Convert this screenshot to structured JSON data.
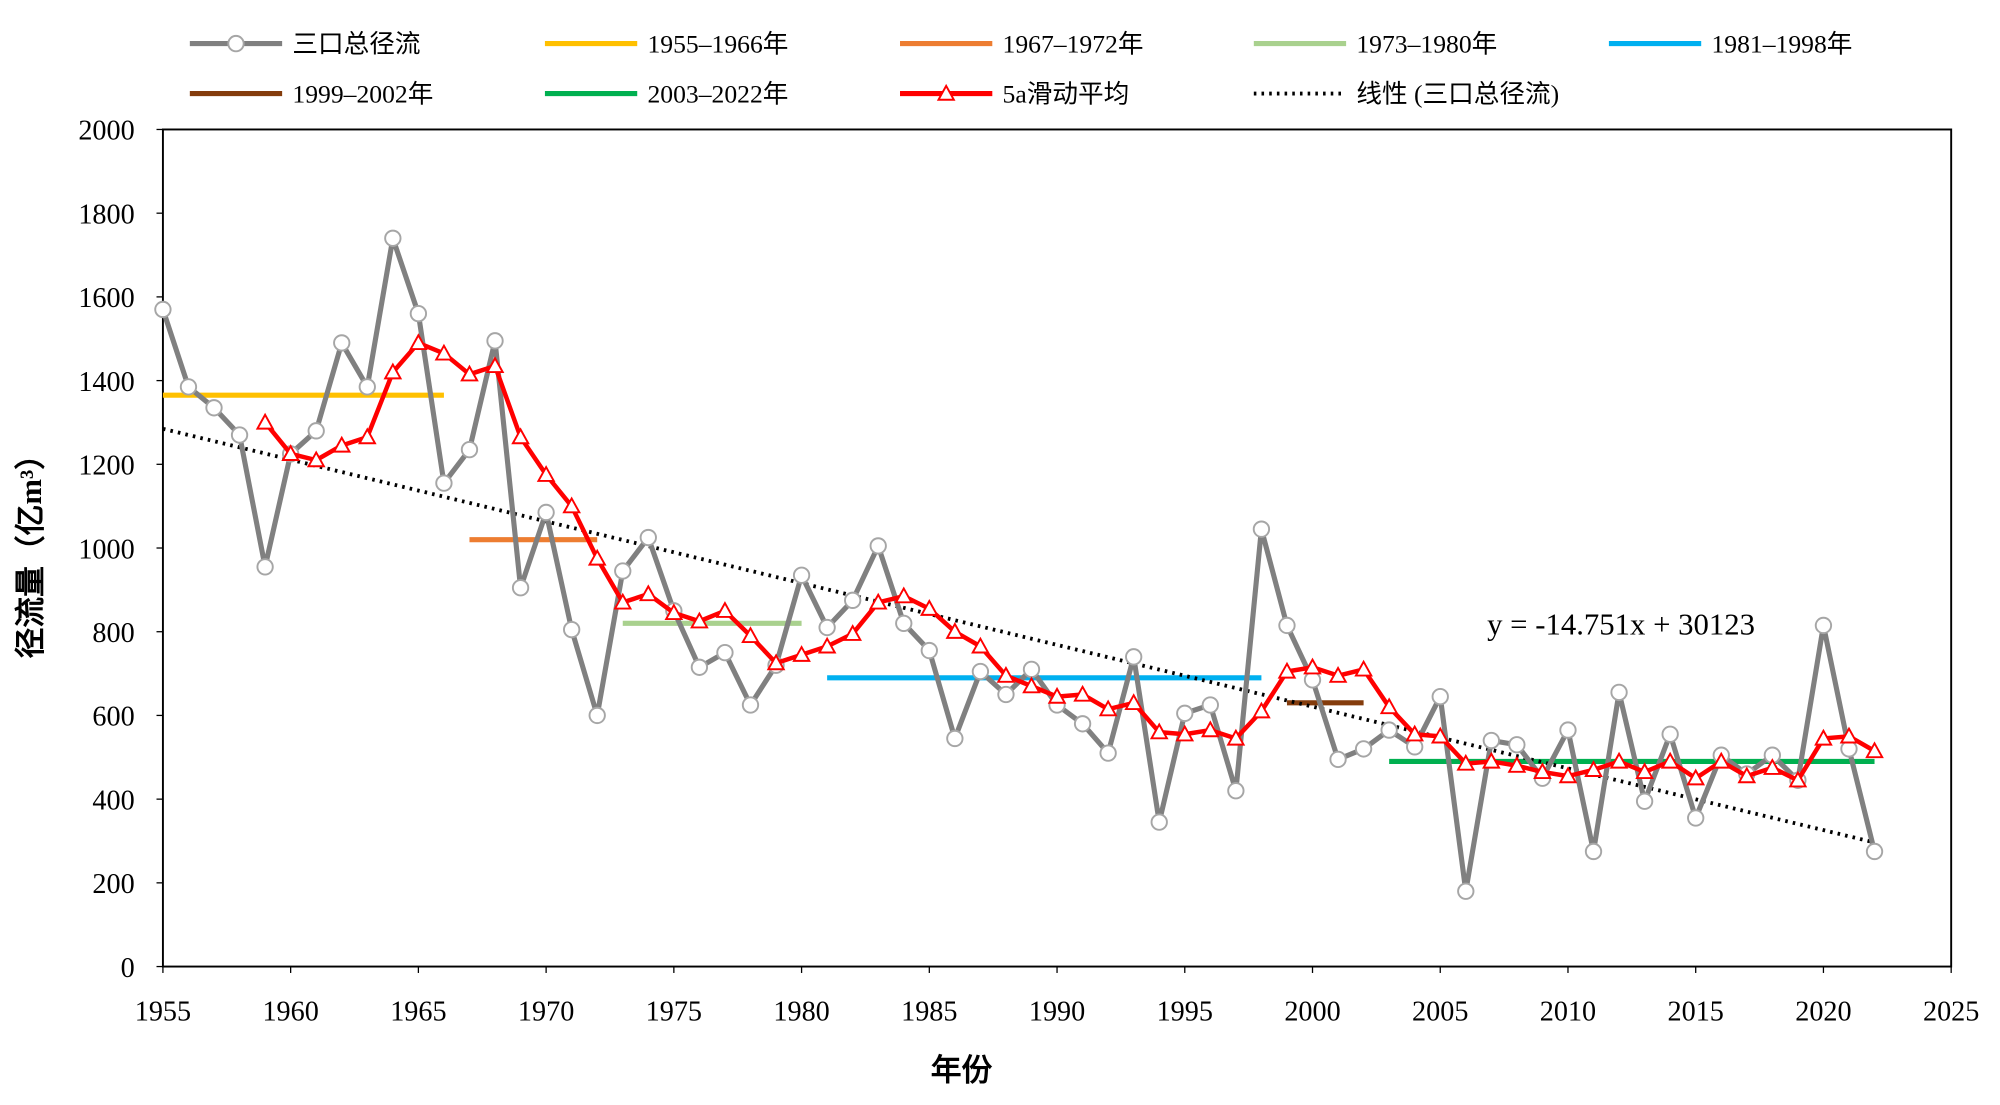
{
  "chart_data": {
    "type": "line",
    "xlabel": "年份",
    "ylabel": "径流量（亿m³）",
    "xlim": [
      1955,
      2025
    ],
    "ylim": [
      0,
      2000
    ],
    "xticks": [
      1955,
      1960,
      1965,
      1970,
      1975,
      1980,
      1985,
      1990,
      1995,
      2000,
      2005,
      2010,
      2015,
      2020,
      2025
    ],
    "yticks": [
      0,
      200,
      400,
      600,
      800,
      1000,
      1200,
      1400,
      1600,
      1800,
      2000
    ],
    "legend_position": "top",
    "annotation": "y = -14.751x + 30123",
    "series": [
      {
        "name": "三口总径流",
        "color": "#808080",
        "marker": "circle",
        "start": 1955,
        "values": [
          1570,
          1385,
          1335,
          1270,
          955,
          1225,
          1280,
          1490,
          1385,
          1740,
          1560,
          1155,
          1235,
          1495,
          905,
          1085,
          805,
          600,
          945,
          1025,
          850,
          715,
          750,
          625,
          720,
          935,
          810,
          875,
          1005,
          820,
          755,
          545,
          705,
          650,
          710,
          625,
          580,
          510,
          740,
          345,
          605,
          625,
          420,
          1045,
          815,
          685,
          495,
          520,
          565,
          525,
          645,
          180,
          540,
          530,
          450,
          565,
          275,
          655,
          395,
          555,
          355,
          505,
          460,
          505,
          445,
          815,
          520,
          275
        ]
      },
      {
        "name": "5a滑动平均",
        "color": "#FF0000",
        "marker": "triangle",
        "start": 1959,
        "values": [
          1300,
          1225,
          1210,
          1245,
          1265,
          1420,
          1490,
          1465,
          1415,
          1435,
          1265,
          1175,
          1100,
          975,
          870,
          890,
          845,
          825,
          850,
          790,
          725,
          745,
          765,
          795,
          870,
          885,
          855,
          800,
          765,
          695,
          670,
          645,
          650,
          615,
          630,
          560,
          555,
          565,
          545,
          610,
          705,
          715,
          695,
          710,
          620,
          555,
          550,
          485,
          490,
          480,
          465,
          455,
          470,
          490,
          465,
          490,
          450,
          490,
          455,
          475,
          445,
          545,
          550,
          515
        ]
      }
    ],
    "period_means": [
      {
        "name": "1955–1966年",
        "color": "#FFC000",
        "from": 1955,
        "to": 1966,
        "value": 1365
      },
      {
        "name": "1967–1972年",
        "color": "#ED7D31",
        "from": 1967,
        "to": 1972,
        "value": 1020
      },
      {
        "name": "1973–1980年",
        "color": "#A9D18E",
        "from": 1973,
        "to": 1980,
        "value": 820
      },
      {
        "name": "1981–1998年",
        "color": "#00B0F0",
        "from": 1981,
        "to": 1998,
        "value": 690
      },
      {
        "name": "1999–2002年",
        "color": "#843C0C",
        "from": 1999,
        "to": 2002,
        "value": 630
      },
      {
        "name": "2003–2022年",
        "color": "#00B050",
        "from": 2003,
        "to": 2022,
        "value": 490
      }
    ],
    "trendline": {
      "name": "线性 (三口总径流)",
      "slope": -14.751,
      "intercept": 30123,
      "from": 1955,
      "to": 2022,
      "color": "#000000"
    }
  }
}
